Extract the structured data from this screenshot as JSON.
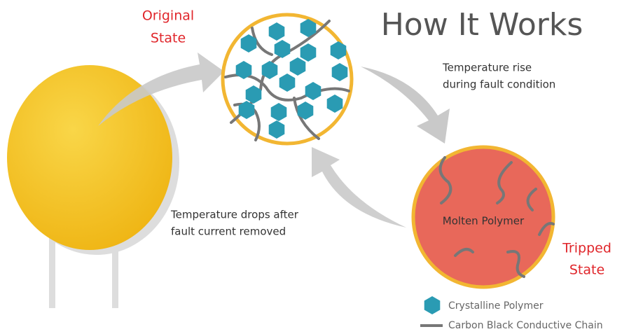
{
  "title": "How It Works",
  "original_state": [
    "Original",
    "State"
  ],
  "rise_note": [
    "Temperature rise",
    "during fault condition"
  ],
  "drop_note": [
    "Temperature drops after",
    "fault current removed"
  ],
  "molten_label": "Molten Polymer",
  "tripped_state": [
    "Tripped",
    "State"
  ],
  "legend": [
    "Crystalline Polymer",
    "Carbon Black Conductive Chain"
  ]
}
